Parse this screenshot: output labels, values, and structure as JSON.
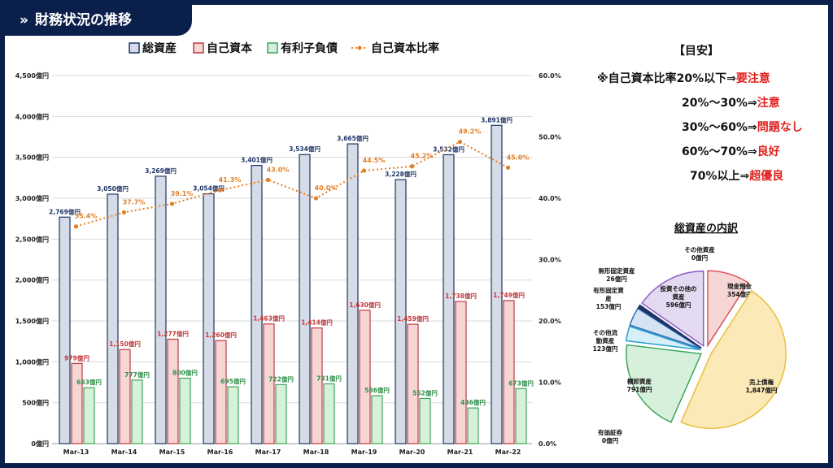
{
  "header": {
    "title": "財務状況の推移",
    "icon": "double-chevron-right-icon"
  },
  "legend": {
    "total_assets": "総資産",
    "equity": "自己資本",
    "debt": "有利子負債",
    "equity_ratio": "自己資本比率"
  },
  "colors": {
    "frame": "#0b1f4b",
    "total_assets_fill": "#d5dbe7",
    "total_assets_stroke": "#1f3468",
    "equity_fill": "#f6d5d5",
    "equity_stroke": "#c0393b",
    "debt_fill": "#d7f0dc",
    "debt_stroke": "#3aa65a",
    "ratio_line": "#e67e22",
    "warn_text": "#e0201e"
  },
  "chart_data": [
    {
      "type": "bar",
      "categories": [
        "Mar-13",
        "Mar-14",
        "Mar-15",
        "Mar-16",
        "Mar-17",
        "Mar-18",
        "Mar-19",
        "Mar-20",
        "Mar-21",
        "Mar-22"
      ],
      "series": [
        {
          "name": "総資産",
          "values": [
            2769,
            3050,
            3269,
            3054,
            3401,
            3534,
            3665,
            3228,
            3532,
            3891
          ],
          "labels": [
            "2,769億円",
            "3,050億円",
            "3,269億円",
            "3,054億円",
            "3,401億円",
            "3,534億円",
            "3,665億円",
            "3,228億円",
            "3,532億円",
            "3,891億円"
          ]
        },
        {
          "name": "自己資本",
          "values": [
            979,
            1150,
            1277,
            1260,
            1463,
            1414,
            1630,
            1459,
            1738,
            1749
          ],
          "labels": [
            "979億円",
            "1,150億円",
            "1,277億円",
            "1,260億円",
            "1,463億円",
            "1,414億円",
            "1,630億円",
            "1,459億円",
            "1,738億円",
            "1,749億円"
          ]
        },
        {
          "name": "有利子負債",
          "values": [
            683,
            777,
            800,
            695,
            722,
            731,
            586,
            552,
            436,
            673
          ],
          "labels": [
            "683億円",
            "777億円",
            "800億円",
            "695億円",
            "722億円",
            "731億円",
            "586億円",
            "552億円",
            "436億円",
            "673億円"
          ]
        },
        {
          "name": "自己資本比率",
          "axis": "right",
          "values": [
            35.4,
            37.7,
            39.1,
            41.3,
            43.0,
            40.0,
            44.5,
            45.2,
            49.2,
            45.0
          ],
          "labels": [
            "35.4%",
            "37.7%",
            "39.1%",
            "41.3%",
            "43.0%",
            "40.0%",
            "44.5%",
            "45.2%",
            "49.2%",
            "45.0%"
          ]
        }
      ],
      "ylim": [
        0,
        4500
      ],
      "y_ticks": [
        "0億円",
        "500億円",
        "1,000億円",
        "1,500億円",
        "2,000億円",
        "2,500億円",
        "3,000億円",
        "3,500億円",
        "4,000億円",
        "4,500億円"
      ],
      "y2lim": [
        0,
        60
      ],
      "y2_ticks": [
        "0.0%",
        "10.0%",
        "20.0%",
        "30.0%",
        "40.0%",
        "50.0%",
        "60.0%"
      ],
      "grid": true,
      "legend_position": "top"
    },
    {
      "type": "pie",
      "title": "総資産の内訳",
      "slices": [
        {
          "label": "現金預金",
          "value": 354,
          "value_label": "354億円",
          "color": "#f6d5d5",
          "stroke": "#d9535b"
        },
        {
          "label": "売上債権",
          "value": 1847,
          "value_label": "1,847億円",
          "color": "#fbe9b7",
          "stroke": "#e8bf3a"
        },
        {
          "label": "有価証券",
          "value": 0,
          "value_label": "0億円",
          "color": "#ffffff",
          "stroke": "#888888"
        },
        {
          "label": "棚卸資産",
          "value": 791,
          "value_label": "791億円",
          "color": "#d7f0dc",
          "stroke": "#3aa65a"
        },
        {
          "label": "その他流動資産",
          "value": 123,
          "value_label": "123億円",
          "color": "#d7eff7",
          "stroke": "#2aa3cf"
        },
        {
          "label": "有形固定資産",
          "value": 153,
          "value_label": "153億円",
          "color": "#d5e3f3",
          "stroke": "#2e6fb7"
        },
        {
          "label": "無形固定資産",
          "value": 26,
          "value_label": "26億円",
          "color": "#1f3468",
          "stroke": "#1f3468"
        },
        {
          "label": "投資その他の資産",
          "value": 596,
          "value_label": "596億円",
          "color": "#e3d9f0",
          "stroke": "#8a5cc0"
        },
        {
          "label": "その他資産",
          "value": 0,
          "value_label": "0億円",
          "color": "#ffffff",
          "stroke": "#888888"
        }
      ]
    }
  ],
  "guide": {
    "heading": "【目安】",
    "rows": [
      {
        "range": "※自己資本比率20%以下⇒",
        "level": "要注意"
      },
      {
        "range": "20%～30%⇒",
        "level": "注意"
      },
      {
        "range": "30%～60%⇒",
        "level": "問題なし"
      },
      {
        "range": "60%～70%⇒",
        "level": "良好"
      },
      {
        "range": "70%以上⇒",
        "level": "超優良"
      }
    ]
  }
}
